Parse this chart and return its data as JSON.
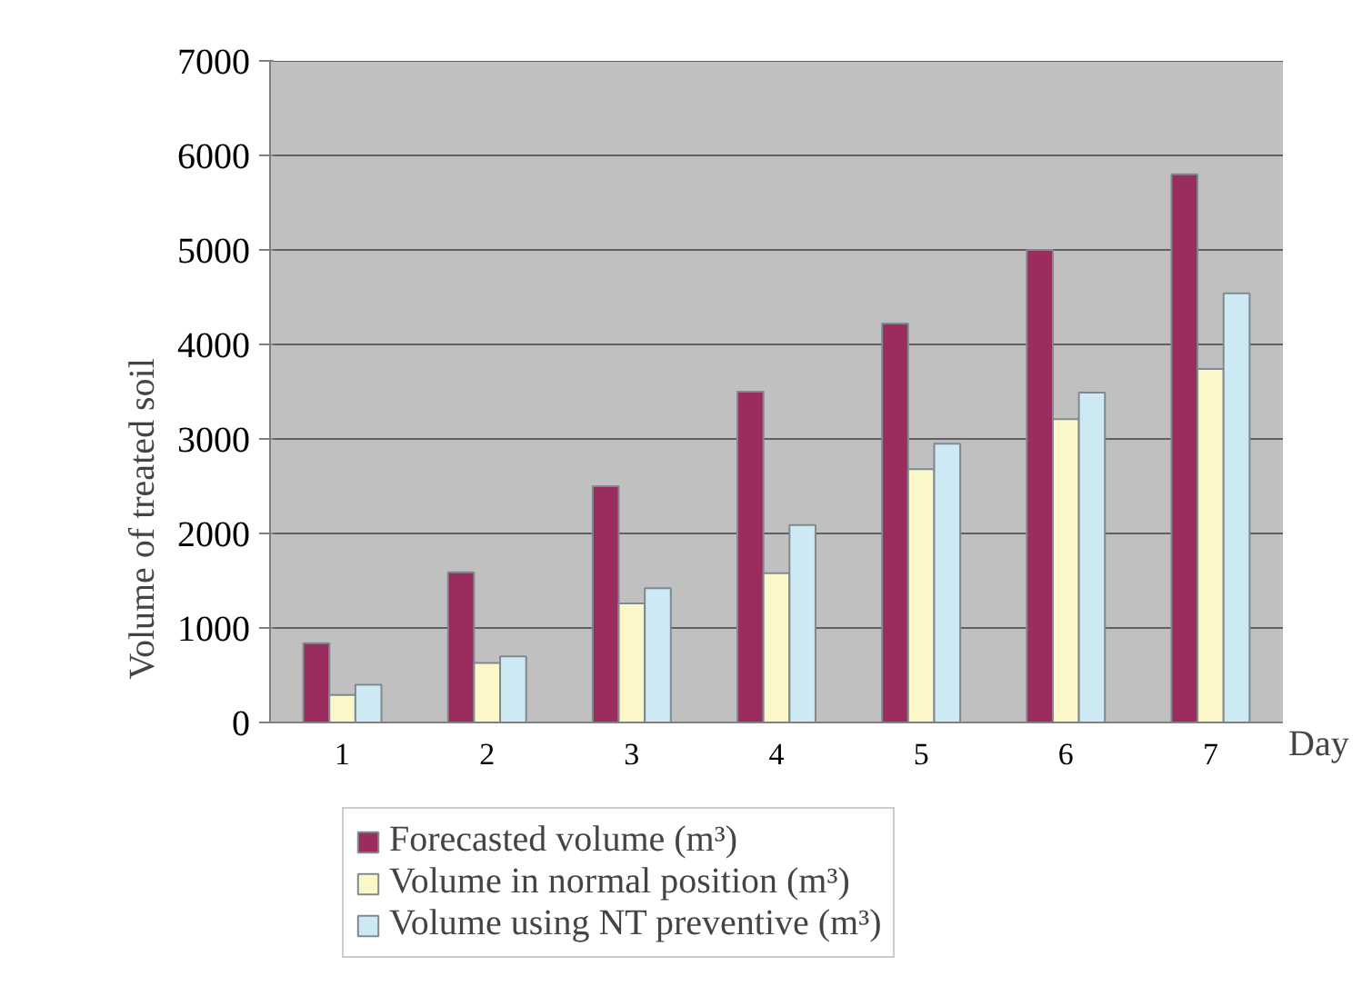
{
  "chart_data": {
    "type": "bar",
    "xlabel": "Day",
    "ylabel": "Volume of treated soil",
    "categories": [
      "1",
      "2",
      "3",
      "4",
      "5",
      "6",
      "7"
    ],
    "series": [
      {
        "name": "Forecasted volume (m³)",
        "color": "#9b2d5e",
        "values": [
          840,
          1590,
          2500,
          3500,
          4220,
          5000,
          5800
        ]
      },
      {
        "name": "Volume in normal position (m³)",
        "color": "#fbf7c9",
        "values": [
          290,
          630,
          1260,
          1580,
          2680,
          3210,
          3740
        ]
      },
      {
        "name": "Volume using NT preventive (m³)",
        "color": "#cde9f3",
        "values": [
          400,
          700,
          1420,
          2090,
          2950,
          3490,
          4540
        ]
      }
    ],
    "ylim": [
      0,
      7000
    ],
    "yticks": [
      0,
      1000,
      2000,
      3000,
      4000,
      5000,
      6000,
      7000
    ],
    "grid": "y",
    "legend": "bottom"
  }
}
